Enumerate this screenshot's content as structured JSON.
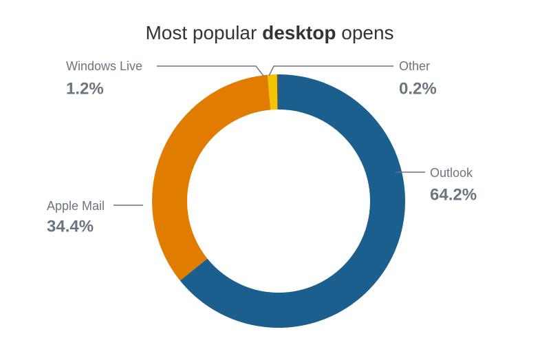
{
  "chart_data": {
    "type": "donut",
    "title": [
      "Most popular",
      "desktop",
      "opens"
    ],
    "categories": [
      "Outlook",
      "Apple Mail",
      "Windows Live",
      "Other"
    ],
    "values": [
      64.2,
      34.4,
      1.2,
      0.2
    ],
    "value_labels": [
      "64.2%",
      "34.4%",
      "1.2%",
      "0.2%"
    ],
    "colors": [
      "#1a5f8e",
      "#e07c00",
      "#f2c500",
      "#555555"
    ]
  }
}
